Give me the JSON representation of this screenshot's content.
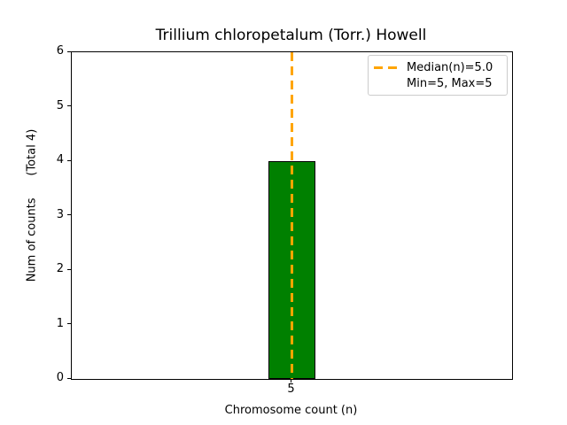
{
  "chart_data": {
    "type": "bar",
    "title": "Trillium chloropetalum (Torr.) Howell",
    "xlabel": "Chromosome count (n)",
    "ylabel": "Num of counts      (Total 4)",
    "categories": [
      "5"
    ],
    "values": [
      4
    ],
    "total_count": 4,
    "ylim": [
      0,
      6
    ],
    "yticks": [
      0,
      1,
      2,
      3,
      4,
      5,
      6
    ],
    "xticks": [
      "5"
    ],
    "bar_color": "#008000",
    "bar_edge_color": "#000000",
    "median_line": {
      "x_category": "5",
      "value": 5.0,
      "color": "#ffa500",
      "style": "dashed"
    },
    "legend": {
      "position": "upper right",
      "items": [
        {
          "label": "Median(n)=5.0",
          "marker": "orange-dashed-line",
          "color": "#ffa500"
        },
        {
          "label": "Min=5, Max=5",
          "marker": "none"
        }
      ]
    },
    "grid": false,
    "background_color": "#ffffff"
  }
}
